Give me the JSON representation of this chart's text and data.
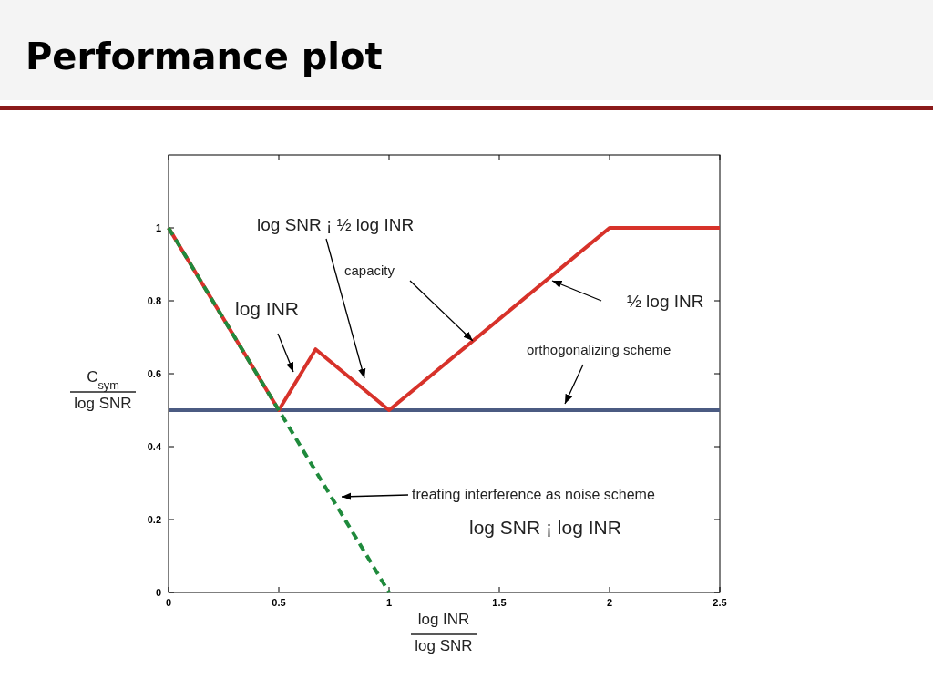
{
  "chart_data": {
    "type": "line",
    "title": "Performance plot",
    "xlabel": "log INR\nlog SNR",
    "ylabel": "C$_{sym}$\nlog SNR",
    "xlim": [
      0,
      2.5
    ],
    "ylim": [
      0,
      1.2
    ],
    "xticks": [
      0,
      0.5,
      1,
      1.5,
      2,
      2.5
    ],
    "yticks": [
      0,
      0.2,
      0.4,
      0.6,
      0.8,
      1
    ],
    "grid": false,
    "series": [
      {
        "color": "#4b5b82",
        "x": [
          0,
          2.5
        ],
        "values": [
          0.5,
          0.5
        ],
        "line_style": "solid"
      },
      {
        "color": "#d7322a",
        "x": [
          0,
          0.5,
          0.667,
          1,
          2,
          2.5
        ],
        "values": [
          1,
          0.5,
          0.667,
          0.5,
          1,
          1
        ],
        "line_style": "solid"
      },
      {
        "color": "#1f8a3c",
        "x": [
          0,
          1
        ],
        "values": [
          1,
          0
        ],
        "line_style": "dashed"
      }
    ],
    "annotations": [
      "log SNR ¡ ½ log INR",
      {
        "text": "capacity",
        "x": 1.38,
        "y": 0.69
      },
      "½ log INR",
      "log INR",
      "orthogonalizing scheme",
      "treating interference as noise scheme",
      "log SNR ¡ log INR"
    ]
  }
}
